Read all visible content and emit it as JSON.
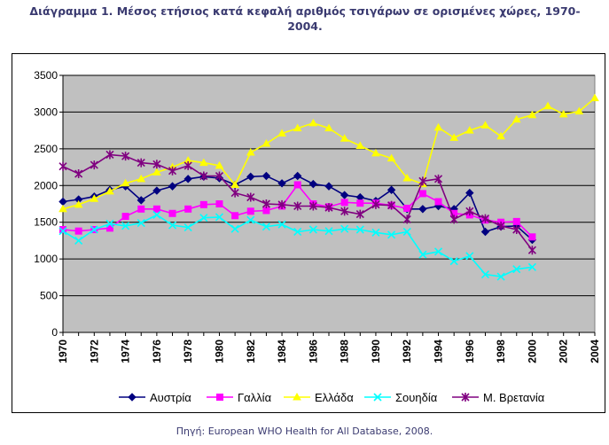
{
  "title_line1": "Διάγραμμα 1. Μέσος ετήσιος κατά κεφαλή αριθμός τσιγάρων σε ορισμένες χώρες, 1970-",
  "title_line2": "2004.",
  "source": "Πηγή: European WHO Health for All Database, 2008.",
  "chart_data": {
    "type": "line",
    "title": "Διάγραμμα 1. Μέσος ετήσιος κατά κεφαλή αριθμός τσιγάρων σε ορισμένες χώρες, 1970-2004.",
    "xlabel": "",
    "ylabel": "",
    "ylim": [
      0,
      3500
    ],
    "yticks": [
      0,
      500,
      1000,
      1500,
      2000,
      2500,
      3000,
      3500
    ],
    "xlim": [
      1970,
      2004
    ],
    "xticks": [
      1970,
      1972,
      1974,
      1976,
      1978,
      1980,
      1982,
      1984,
      1986,
      1988,
      1990,
      1992,
      1994,
      1996,
      1998,
      2000,
      2002,
      2004
    ],
    "grid": true,
    "legend": "bottom",
    "plot_background": "#c0c0c0",
    "series": [
      {
        "name": "Αυστρία",
        "color": "#000080",
        "marker": "diamond",
        "x": [
          1970,
          1971,
          1972,
          1973,
          1974,
          1975,
          1976,
          1977,
          1978,
          1979,
          1980,
          1981,
          1982,
          1983,
          1984,
          1985,
          1986,
          1987,
          1988,
          1989,
          1990,
          1991,
          1992,
          1993,
          1994,
          1995,
          1996,
          1997,
          1998,
          1999,
          2000
        ],
        "values": [
          1780,
          1810,
          1850,
          1940,
          1990,
          1800,
          1930,
          1990,
          2090,
          2120,
          2100,
          2010,
          2120,
          2130,
          2030,
          2130,
          2020,
          1990,
          1870,
          1840,
          1790,
          1940,
          1680,
          1680,
          1720,
          1680,
          1900,
          1370,
          1440,
          1450,
          1260
        ]
      },
      {
        "name": "Γαλλία",
        "color": "#ff00ff",
        "marker": "square",
        "x": [
          1970,
          1971,
          1972,
          1973,
          1974,
          1975,
          1976,
          1977,
          1978,
          1979,
          1980,
          1981,
          1982,
          1983,
          1984,
          1985,
          1986,
          1987,
          1988,
          1989,
          1990,
          1991,
          1992,
          1993,
          1994,
          1995,
          1996,
          1997,
          1998,
          1999,
          2000
        ],
        "values": [
          1400,
          1380,
          1400,
          1420,
          1580,
          1680,
          1680,
          1620,
          1680,
          1740,
          1750,
          1590,
          1650,
          1660,
          1720,
          2010,
          1750,
          1710,
          1770,
          1760,
          1760,
          1730,
          1690,
          1890,
          1780,
          1620,
          1600,
          1530,
          1500,
          1510,
          1300
        ]
      },
      {
        "name": "Ελλάδα",
        "color": "#ffff00",
        "marker": "triangle",
        "x": [
          1970,
          1971,
          1972,
          1973,
          1974,
          1975,
          1976,
          1977,
          1978,
          1979,
          1980,
          1981,
          1982,
          1983,
          1984,
          1985,
          1986,
          1987,
          1988,
          1989,
          1990,
          1991,
          1992,
          1993,
          1994,
          1995,
          1996,
          1997,
          1998,
          1999,
          2000,
          2001,
          2002,
          2003,
          2004
        ],
        "values": [
          1680,
          1740,
          1820,
          1920,
          2030,
          2090,
          2180,
          2250,
          2340,
          2310,
          2270,
          2010,
          2450,
          2570,
          2710,
          2780,
          2850,
          2780,
          2640,
          2540,
          2440,
          2370,
          2100,
          2020,
          2790,
          2650,
          2750,
          2820,
          2670,
          2900,
          2960,
          3080,
          2970,
          3010,
          3190
        ]
      },
      {
        "name": "Σουηδία",
        "color": "#00ffff",
        "marker": "x",
        "x": [
          1970,
          1971,
          1972,
          1973,
          1974,
          1975,
          1976,
          1977,
          1978,
          1979,
          1980,
          1981,
          1982,
          1983,
          1984,
          1985,
          1986,
          1987,
          1988,
          1989,
          1990,
          1991,
          1992,
          1993,
          1994,
          1995,
          1996,
          1997,
          1998,
          1999,
          2000
        ],
        "values": [
          1380,
          1250,
          1400,
          1480,
          1450,
          1490,
          1600,
          1460,
          1430,
          1560,
          1570,
          1410,
          1530,
          1440,
          1470,
          1370,
          1400,
          1380,
          1410,
          1400,
          1360,
          1330,
          1370,
          1060,
          1100,
          970,
          1040,
          790,
          760,
          860,
          890
        ]
      },
      {
        "name": "Μ. Βρετανία",
        "color": "#800080",
        "marker": "star",
        "x": [
          1970,
          1971,
          1972,
          1973,
          1974,
          1975,
          1976,
          1977,
          1978,
          1979,
          1980,
          1981,
          1982,
          1983,
          1984,
          1985,
          1986,
          1987,
          1988,
          1989,
          1990,
          1991,
          1992,
          1993,
          1994,
          1995,
          1996,
          1997,
          1998,
          1999,
          2000
        ],
        "values": [
          2260,
          2160,
          2280,
          2420,
          2400,
          2310,
          2290,
          2200,
          2270,
          2130,
          2130,
          1900,
          1840,
          1750,
          1740,
          1720,
          1720,
          1700,
          1650,
          1610,
          1740,
          1730,
          1540,
          2060,
          2090,
          1540,
          1650,
          1550,
          1450,
          1400,
          1120
        ]
      }
    ]
  }
}
